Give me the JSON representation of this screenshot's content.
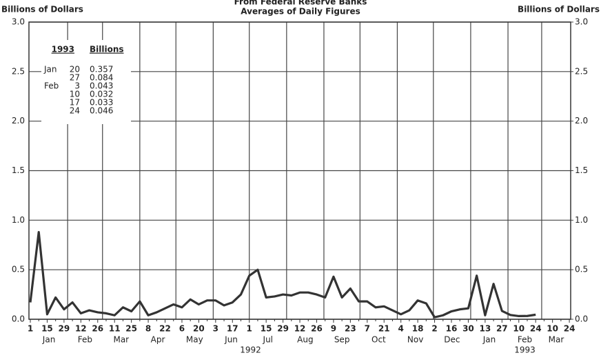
{
  "chart_data": {
    "type": "line",
    "title": "From Federal Reserve Banks",
    "subtitle": "Averages of Daily Figures",
    "y_label": "Billions of Dollars",
    "y2_label": "Billions of Dollars",
    "categories": [
      "1",
      null,
      "15",
      null,
      "29",
      null,
      "12",
      null,
      "26",
      null,
      "11",
      null,
      "25",
      null,
      "8",
      null,
      "22",
      null,
      "6",
      null,
      "20",
      null,
      "3",
      null,
      "17",
      null,
      "1",
      null,
      "15",
      null,
      "29",
      null,
      "12",
      null,
      "26",
      null,
      "9",
      null,
      "23",
      null,
      "7",
      null,
      "21",
      null,
      "4",
      null,
      "18",
      null,
      "2",
      null,
      "16",
      null,
      "30",
      null,
      "13",
      null,
      "27",
      null,
      "10",
      null,
      "24",
      null,
      "10",
      null,
      "24"
    ],
    "month_labels": [
      "Jan",
      "Feb",
      "Mar",
      "Apr",
      "May",
      "Jun",
      "Jul",
      "Aug",
      "Sep",
      "Oct",
      "Nov",
      "Dec",
      "Jan",
      "Feb",
      "Mar"
    ],
    "year_labels": [
      "1992",
      "1993"
    ],
    "series": [
      {
        "name": "Billions",
        "color": "#333333",
        "values": [
          0.17,
          0.88,
          0.05,
          0.22,
          0.1,
          0.17,
          0.06,
          0.09,
          0.07,
          0.06,
          0.04,
          0.12,
          0.08,
          0.18,
          0.04,
          0.07,
          0.11,
          0.15,
          0.12,
          0.2,
          0.15,
          0.19,
          0.19,
          0.14,
          0.17,
          0.25,
          0.44,
          0.5,
          0.22,
          0.23,
          0.25,
          0.24,
          0.27,
          0.27,
          0.25,
          0.22,
          0.43,
          0.22,
          0.31,
          0.18,
          0.18,
          0.12,
          0.13,
          0.09,
          0.05,
          0.09,
          0.19,
          0.16,
          0.02,
          0.04,
          0.08,
          0.1,
          0.11,
          0.44,
          0.04,
          0.357,
          0.084,
          0.043,
          0.032,
          0.033,
          0.046,
          null,
          null,
          null,
          null
        ]
      }
    ],
    "ylim": [
      0,
      3
    ],
    "yticks": [
      {
        "value": 0,
        "label": "0.0"
      },
      {
        "value": 0.5,
        "label": "0.5"
      },
      {
        "value": 1,
        "label": "1.0"
      },
      {
        "value": 1.5,
        "label": "1.5"
      },
      {
        "value": 2,
        "label": "2.0"
      },
      {
        "value": 2.5,
        "label": "2.5"
      },
      {
        "value": 3,
        "label": "3.0"
      }
    ],
    "y2lim": [
      0,
      3
    ],
    "y2ticks": [
      {
        "value": 0,
        "label": "0.0"
      },
      {
        "value": 0.5,
        "label": "0.5"
      },
      {
        "value": 1,
        "label": "1.0"
      },
      {
        "value": 1.5,
        "label": "1.5"
      },
      {
        "value": 2,
        "label": "2.0"
      },
      {
        "value": 2.5,
        "label": "2.5"
      },
      {
        "value": 3,
        "label": "3.0"
      }
    ],
    "grid": true,
    "inset_table": {
      "headers": [
        "1993",
        "Billions"
      ],
      "rows": [
        {
          "month": "Jan",
          "day": "20",
          "value": "0.357"
        },
        {
          "month": null,
          "day": "27",
          "value": "0.084"
        },
        {
          "month": "Feb",
          "day": "3",
          "value": "0.043"
        },
        {
          "month": null,
          "day": "10",
          "value": "0.032"
        },
        {
          "month": null,
          "day": "17",
          "value": "0.033"
        },
        {
          "month": null,
          "day": "24",
          "value": "0.046"
        }
      ]
    }
  }
}
